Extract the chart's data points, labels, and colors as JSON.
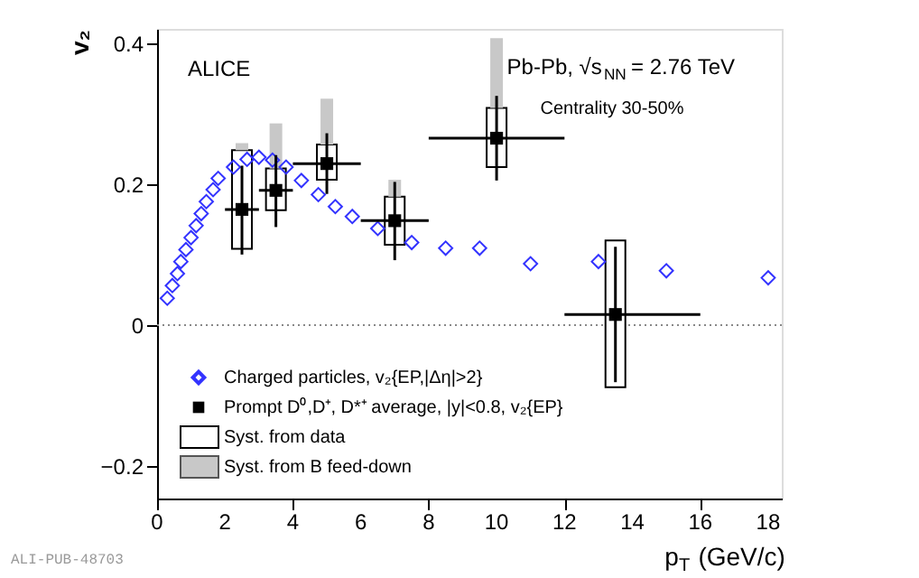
{
  "chart_data": {
    "type": "scatter",
    "xlabel": "p$_{T}$ (GeV/c)",
    "ylabel": "v₂",
    "xlim": [
      0,
      18.4
    ],
    "ylim": [
      -0.246,
      0.42
    ],
    "xticks": [
      0,
      2,
      4,
      6,
      8,
      10,
      12,
      14,
      16,
      18
    ],
    "yticks": [
      -0.2,
      0,
      0.2,
      0.4
    ],
    "grid": false,
    "legend": "bottom left",
    "ref_lines": [
      {
        "axis": "y",
        "value": 0,
        "color": "#888888",
        "line_style": "dotted"
      }
    ],
    "annotations": [
      "ALICE",
      "Pb-Pb, √s$_{NN}$ = 2.76 TeV",
      "Centrality 30-50%",
      "ALI-PUB-48703"
    ],
    "series": [
      {
        "name": "Syst. from data",
        "type": "bar",
        "color": "#ffffff",
        "x": [
          2.5,
          3.5,
          5,
          7,
          10,
          13.5
        ],
        "base": [
          0.108,
          0.163,
          0.206,
          0.114,
          0.224,
          -0.088
        ],
        "values": [
          0.14,
          0.059,
          0.05,
          0.068,
          0.084,
          0.208
        ]
      },
      {
        "name": "Syst. from B feed-down",
        "type": "bar",
        "color": "#c8c8c8",
        "x": [
          2.5,
          3.5,
          5,
          7,
          10
        ],
        "base": [
          0.248,
          0.222,
          0.256,
          0.182,
          0.308
        ],
        "values": [
          0.01,
          0.064,
          0.065,
          0.024,
          0.099
        ]
      },
      {
        "name": "Charged particles, v₂{EP,|Δη|>2}",
        "marker": "diamond",
        "color": "#3333ff",
        "x": [
          0.3,
          0.45,
          0.6,
          0.7,
          0.85,
          1.0,
          1.15,
          1.3,
          1.45,
          1.65,
          1.8,
          2.25,
          2.65,
          3.0,
          3.4,
          3.8,
          4.25,
          4.75,
          5.25,
          5.75,
          6.5,
          7.5,
          8.5,
          9.5,
          11,
          13,
          15,
          18
        ],
        "values": [
          0.038,
          0.056,
          0.073,
          0.09,
          0.107,
          0.124,
          0.141,
          0.158,
          0.175,
          0.192,
          0.208,
          0.224,
          0.235,
          0.238,
          0.234,
          0.224,
          0.205,
          0.185,
          0.168,
          0.154,
          0.137,
          0.117,
          0.109,
          0.109,
          0.087,
          0.09,
          0.077,
          0.067
        ]
      },
      {
        "name": "Prompt D⁰,D⁺, D*⁺ average, |y|<0.8, v₂{EP}",
        "marker": "square",
        "color": "#000000",
        "x": [
          2.5,
          3.5,
          5,
          7,
          10,
          13.5
        ],
        "values": [
          0.164,
          0.191,
          0.229,
          0.148,
          0.265,
          0.015
        ],
        "errors": [
          [
            0.1,
            0.226
          ],
          [
            0.139,
            0.241
          ],
          [
            0.186,
            0.272
          ],
          [
            0.092,
            0.203
          ],
          [
            0.205,
            0.325
          ],
          [
            -0.081,
            0.111
          ]
        ],
        "xerrors": [
          [
            2,
            3
          ],
          [
            3,
            4
          ],
          [
            4,
            6
          ],
          [
            6,
            8
          ],
          [
            8,
            12
          ],
          [
            12,
            16
          ]
        ]
      }
    ]
  }
}
